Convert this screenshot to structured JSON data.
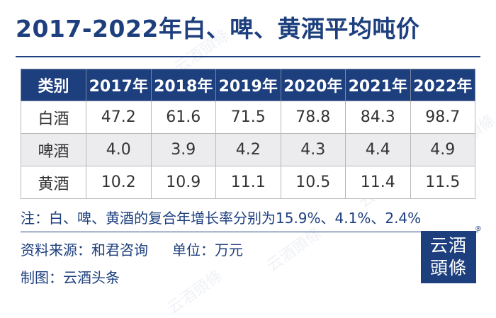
{
  "title": "2017-2022年白、啤、黄酒平均吨价",
  "table": {
    "headers": [
      "类别",
      "2017年",
      "2018年",
      "2019年",
      "2020年",
      "2021年",
      "2022年"
    ],
    "rows": [
      [
        "白酒",
        "47.2",
        "61.6",
        "71.5",
        "78.8",
        "84.3",
        "98.7"
      ],
      [
        "啤酒",
        "4.0",
        "3.9",
        "4.2",
        "4.3",
        "4.4",
        "4.9"
      ],
      [
        "黄酒",
        "10.2",
        "10.9",
        "11.1",
        "10.5",
        "11.4",
        "11.5"
      ]
    ]
  },
  "note": "注：白、啤、黄酒的复合年增长率分别为15.9%、4.1%、2.4%",
  "source": "资料来源：和君咨询",
  "unit": "单位：万元",
  "maker": "制图：云酒头条",
  "logo": {
    "line1": "云酒",
    "line2": "頭條",
    "reg": "®"
  },
  "watermark": "云酒頭條",
  "colors": {
    "brand": "#1d3f7e",
    "alt_row": "#ececef"
  }
}
